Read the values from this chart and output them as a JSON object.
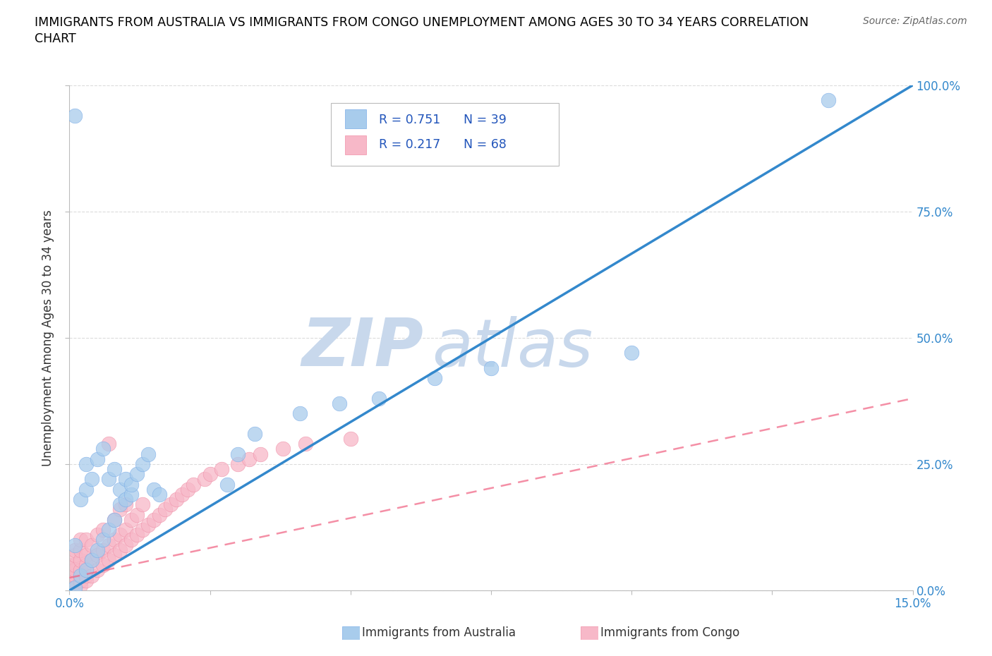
{
  "title_line1": "IMMIGRANTS FROM AUSTRALIA VS IMMIGRANTS FROM CONGO UNEMPLOYMENT AMONG AGES 30 TO 34 YEARS CORRELATION",
  "title_line2": "CHART",
  "source": "Source: ZipAtlas.com",
  "ylabel": "Unemployment Among Ages 30 to 34 years",
  "xlim": [
    0.0,
    0.15
  ],
  "ylim": [
    0.0,
    1.0
  ],
  "xticks": [
    0.0,
    0.025,
    0.05,
    0.075,
    0.1,
    0.125,
    0.15
  ],
  "xticklabels_show": [
    "0.0%",
    "15.0%"
  ],
  "xticklabels_pos": [
    0.0,
    0.15
  ],
  "yticks": [
    0.0,
    0.25,
    0.5,
    0.75,
    1.0
  ],
  "yticklabels": [
    "0.0%",
    "25.0%",
    "50.0%",
    "75.0%",
    "100.0%"
  ],
  "australia_color": "#A8CCEC",
  "australia_edge_color": "#7AACE8",
  "congo_color": "#F7B8C8",
  "congo_edge_color": "#F090A8",
  "australia_line_color": "#3388CC",
  "congo_line_color": "#F06080",
  "tick_label_color": "#3388CC",
  "watermark_zip": "ZIP",
  "watermark_atlas": "atlas",
  "watermark_color": "#C8D8EC",
  "legend_R_australia": "R = 0.751",
  "legend_N_australia": "N = 39",
  "legend_R_congo": "R = 0.217",
  "legend_N_congo": "N = 68",
  "legend_text_color": "#2255BB",
  "background_color": "#FFFFFF",
  "grid_color": "#CCCCCC",
  "bottom_legend_aus": "Immigrants from Australia",
  "bottom_legend_congo": "Immigrants from Congo",
  "aus_scatter_x": [
    0.001,
    0.001,
    0.001,
    0.002,
    0.002,
    0.003,
    0.003,
    0.003,
    0.004,
    0.004,
    0.005,
    0.005,
    0.006,
    0.006,
    0.007,
    0.007,
    0.008,
    0.008,
    0.009,
    0.009,
    0.01,
    0.01,
    0.011,
    0.011,
    0.012,
    0.013,
    0.014,
    0.015,
    0.016,
    0.028,
    0.03,
    0.033,
    0.041,
    0.048,
    0.055,
    0.065,
    0.075,
    0.1,
    0.135
  ],
  "aus_scatter_y": [
    0.005,
    0.09,
    0.94,
    0.03,
    0.18,
    0.04,
    0.2,
    0.25,
    0.06,
    0.22,
    0.08,
    0.26,
    0.1,
    0.28,
    0.12,
    0.22,
    0.14,
    0.24,
    0.17,
    0.2,
    0.18,
    0.22,
    0.19,
    0.21,
    0.23,
    0.25,
    0.27,
    0.2,
    0.19,
    0.21,
    0.27,
    0.31,
    0.35,
    0.37,
    0.38,
    0.42,
    0.44,
    0.47,
    0.97
  ],
  "congo_scatter_x": [
    0.0,
    0.0,
    0.0,
    0.0,
    0.0,
    0.001,
    0.001,
    0.001,
    0.001,
    0.001,
    0.001,
    0.001,
    0.002,
    0.002,
    0.002,
    0.002,
    0.002,
    0.002,
    0.003,
    0.003,
    0.003,
    0.003,
    0.003,
    0.004,
    0.004,
    0.004,
    0.005,
    0.005,
    0.005,
    0.006,
    0.006,
    0.006,
    0.007,
    0.007,
    0.007,
    0.008,
    0.008,
    0.008,
    0.009,
    0.009,
    0.009,
    0.01,
    0.01,
    0.01,
    0.011,
    0.011,
    0.012,
    0.012,
    0.013,
    0.013,
    0.014,
    0.015,
    0.016,
    0.017,
    0.018,
    0.019,
    0.02,
    0.021,
    0.022,
    0.024,
    0.025,
    0.027,
    0.03,
    0.032,
    0.034,
    0.038,
    0.042,
    0.05
  ],
  "congo_scatter_y": [
    0.01,
    0.02,
    0.03,
    0.04,
    0.05,
    0.01,
    0.02,
    0.03,
    0.04,
    0.05,
    0.07,
    0.08,
    0.01,
    0.02,
    0.04,
    0.06,
    0.08,
    0.1,
    0.02,
    0.03,
    0.05,
    0.07,
    0.1,
    0.03,
    0.06,
    0.09,
    0.04,
    0.07,
    0.11,
    0.05,
    0.08,
    0.12,
    0.06,
    0.09,
    0.29,
    0.07,
    0.1,
    0.14,
    0.08,
    0.11,
    0.16,
    0.09,
    0.12,
    0.17,
    0.1,
    0.14,
    0.11,
    0.15,
    0.12,
    0.17,
    0.13,
    0.14,
    0.15,
    0.16,
    0.17,
    0.18,
    0.19,
    0.2,
    0.21,
    0.22,
    0.23,
    0.24,
    0.25,
    0.26,
    0.27,
    0.28,
    0.29,
    0.3
  ]
}
